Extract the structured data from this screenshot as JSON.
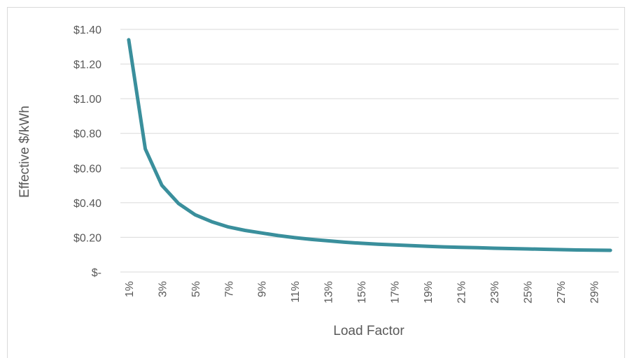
{
  "chart_data": {
    "type": "line",
    "title": "",
    "xlabel": "Load Factor",
    "ylabel": "Effective $/kWh",
    "ylim": [
      0,
      1.4
    ],
    "grid": true,
    "legend": "none",
    "y_ticks": [
      {
        "value": 0,
        "label": "$-"
      },
      {
        "value": 0.2,
        "label": "$0.20"
      },
      {
        "value": 0.4,
        "label": "$0.40"
      },
      {
        "value": 0.6,
        "label": "$0.60"
      },
      {
        "value": 0.8,
        "label": "$0.80"
      },
      {
        "value": 1.0,
        "label": "$1.00"
      },
      {
        "value": 1.2,
        "label": "$1.20"
      },
      {
        "value": 1.4,
        "label": "$1.40"
      }
    ],
    "categories": [
      "1%",
      "2%",
      "3%",
      "4%",
      "5%",
      "6%",
      "7%",
      "8%",
      "9%",
      "10%",
      "11%",
      "12%",
      "13%",
      "14%",
      "15%",
      "16%",
      "17%",
      "18%",
      "19%",
      "20%",
      "21%",
      "22%",
      "23%",
      "24%",
      "25%",
      "26%",
      "27%",
      "28%",
      "29%",
      "30%"
    ],
    "x_tick_labels": [
      "1%",
      "3%",
      "5%",
      "7%",
      "9%",
      "11%",
      "13%",
      "15%",
      "17%",
      "19%",
      "21%",
      "23%",
      "25%",
      "27%",
      "29%"
    ],
    "series": [
      {
        "values": [
          1.34,
          0.71,
          0.5,
          0.395,
          0.33,
          0.29,
          0.26,
          0.24,
          0.225,
          0.21,
          0.198,
          0.188,
          0.18,
          0.172,
          0.166,
          0.16,
          0.156,
          0.152,
          0.148,
          0.145,
          0.142,
          0.14,
          0.137,
          0.135,
          0.133,
          0.131,
          0.129,
          0.127,
          0.126,
          0.125
        ],
        "color": "#3a8f9c"
      }
    ]
  }
}
